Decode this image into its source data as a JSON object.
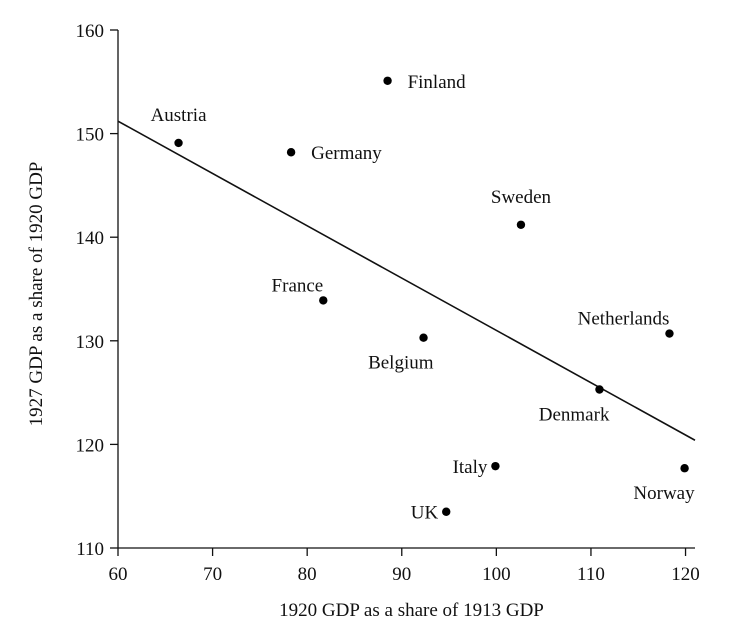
{
  "chart_data": {
    "type": "scatter",
    "title": "",
    "xlabel": "1920 GDP as a share of 1913 GDP",
    "ylabel": "1927 GDP as a share of 1920 GDP",
    "xlim": [
      60,
      121
    ],
    "ylim": [
      110,
      160
    ],
    "xticks": [
      60,
      70,
      80,
      90,
      100,
      110,
      120
    ],
    "yticks": [
      110,
      120,
      130,
      140,
      150,
      160
    ],
    "points": [
      {
        "label": "Austria",
        "x": 66.4,
        "y": 149.1,
        "label_pos": "above"
      },
      {
        "label": "Finland",
        "x": 88.5,
        "y": 155.1,
        "label_pos": "right"
      },
      {
        "label": "Germany",
        "x": 78.3,
        "y": 148.2,
        "label_pos": "right"
      },
      {
        "label": "Sweden",
        "x": 102.6,
        "y": 141.2,
        "label_pos": "above"
      },
      {
        "label": "France",
        "x": 81.7,
        "y": 133.9,
        "label_pos": "above-left"
      },
      {
        "label": "Belgium",
        "x": 92.3,
        "y": 130.3,
        "label_pos": "below-left"
      },
      {
        "label": "Netherlands",
        "x": 118.3,
        "y": 130.7,
        "label_pos": "above-left"
      },
      {
        "label": "Denmark",
        "x": 110.9,
        "y": 125.3,
        "label_pos": "below-left"
      },
      {
        "label": "Italy",
        "x": 99.9,
        "y": 117.9,
        "label_pos": "left"
      },
      {
        "label": "Norway",
        "x": 119.9,
        "y": 117.7,
        "label_pos": "below-left"
      },
      {
        "label": "UK",
        "x": 94.7,
        "y": 113.5,
        "label_pos": "left"
      }
    ],
    "trendline": {
      "x": [
        60,
        121
      ],
      "y": [
        151.2,
        120.4
      ]
    },
    "grid": false,
    "legend": "none"
  }
}
